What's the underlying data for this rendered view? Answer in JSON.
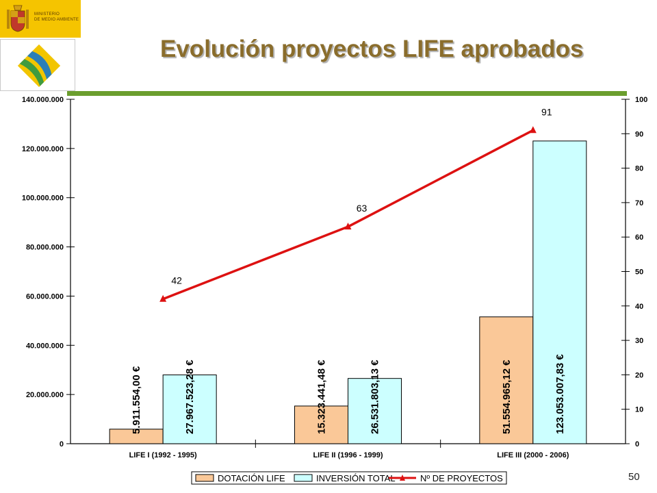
{
  "header": {
    "title": "Evolución proyectos LIFE aprobados",
    "ministry_logo_text": [
      "MINISTERIO",
      "DE MEDIO AMBIENTE"
    ],
    "colors": {
      "logo_background": "#f5c400",
      "title": "#8a6d2c",
      "title_bar": "#6b9e2e"
    }
  },
  "page": {
    "number": "50"
  },
  "chart_data": {
    "type": "bar+line",
    "categories": [
      "LIFE I (1992 - 1995)",
      "LIFE II (1996 - 1999)",
      "LIFE III (2000 - 2006)"
    ],
    "series": [
      {
        "name": "DOTACIÓN LIFE",
        "kind": "bar",
        "axis": "left",
        "color": "#fac898",
        "values": [
          5911554.0,
          15323441.48,
          51554965.12
        ],
        "labels": [
          "5.911.554,00 €",
          "15.323.441,48 €",
          "51.554.965,12 €"
        ]
      },
      {
        "name": "INVERSIÓN TOTAL",
        "kind": "bar",
        "axis": "left",
        "color": "#ccffff",
        "values": [
          27967523.28,
          26531803.13,
          123053007.83
        ],
        "labels": [
          "27.967.523,28 €",
          "26.531.803,13 €",
          "123.053.007,83 €"
        ]
      },
      {
        "name": "Nº DE PROYECTOS",
        "kind": "line",
        "axis": "right",
        "color": "#dd1111",
        "values": [
          42,
          63,
          91
        ],
        "labels": [
          "42",
          "63",
          "91"
        ]
      }
    ],
    "y_left": {
      "ylim": [
        0,
        140000000
      ],
      "ticks": [
        0,
        20000000,
        40000000,
        60000000,
        80000000,
        100000000,
        120000000,
        140000000
      ],
      "tick_labels": [
        "0",
        "20.000.000",
        "40.000.000",
        "60.000.000",
        "80.000.000",
        "100.000.000",
        "120.000.000",
        "140.000.000"
      ]
    },
    "y_right": {
      "ylim": [
        0,
        100
      ],
      "ticks": [
        0,
        10,
        20,
        30,
        40,
        50,
        60,
        70,
        80,
        90,
        100
      ],
      "tick_labels": [
        "0",
        "10",
        "20",
        "30",
        "40",
        "50",
        "60",
        "70",
        "80",
        "90",
        "100"
      ]
    },
    "grid": false,
    "legend_position": "bottom"
  }
}
